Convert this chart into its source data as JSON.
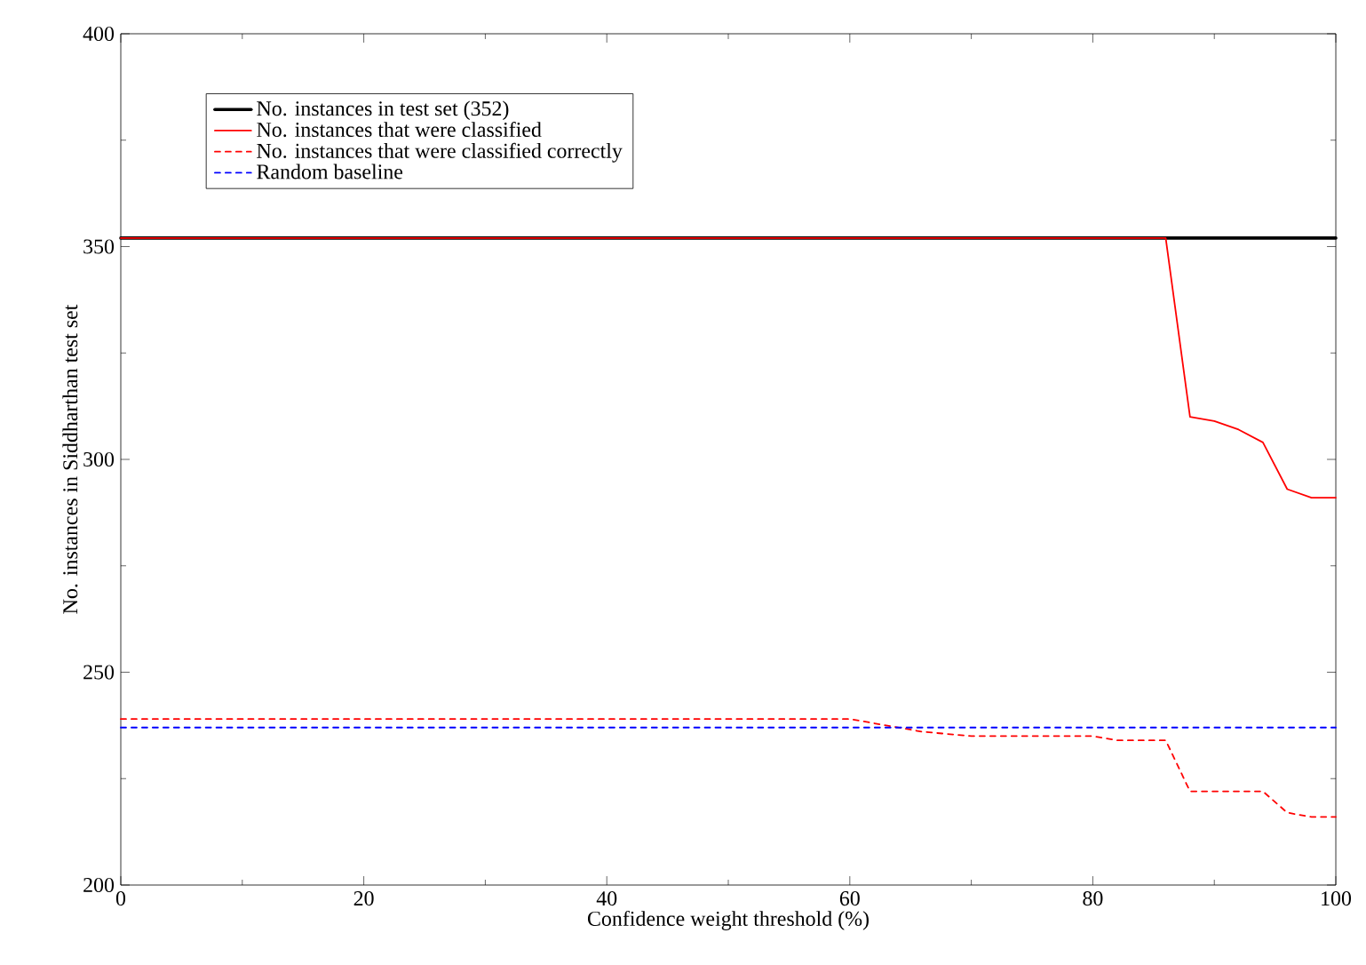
{
  "chart_data": {
    "type": "line",
    "xlabel": "Confidence weight threshold (%)",
    "ylabel": "No. instances in Siddharthan test set",
    "xlim": [
      0,
      100
    ],
    "ylim": [
      200,
      400
    ],
    "xticks": [
      0,
      20,
      40,
      60,
      80,
      100
    ],
    "yticks": [
      200,
      250,
      300,
      350,
      400
    ],
    "grid": false,
    "legend": "top left",
    "marker": "none",
    "series": [
      {
        "name": "No. instances in test set (352)",
        "color": "#000000",
        "line_style": "solid",
        "x": [
          0,
          100
        ],
        "values": [
          352,
          352
        ]
      },
      {
        "name": "No. instances that were classified",
        "color": "#ff0000",
        "line_style": "solid",
        "x": [
          0,
          86,
          88,
          90,
          92,
          94,
          96,
          98,
          100
        ],
        "values": [
          352,
          352,
          310,
          309,
          307,
          304,
          293,
          291,
          291
        ]
      },
      {
        "name": "No. instances that were classified correctly",
        "color": "#ff0000",
        "line_style": "dashed",
        "x": [
          0,
          60,
          62,
          64,
          66,
          68,
          70,
          80,
          82,
          86,
          88,
          94,
          96,
          98,
          100
        ],
        "values": [
          239,
          239,
          238,
          237,
          236,
          235.5,
          235,
          235,
          234,
          234,
          222,
          222,
          217,
          216,
          216
        ]
      },
      {
        "name": "Random baseline",
        "color": "#0000ff",
        "line_style": "dashed",
        "x": [
          0,
          100
        ],
        "values": [
          237,
          237
        ]
      }
    ]
  }
}
